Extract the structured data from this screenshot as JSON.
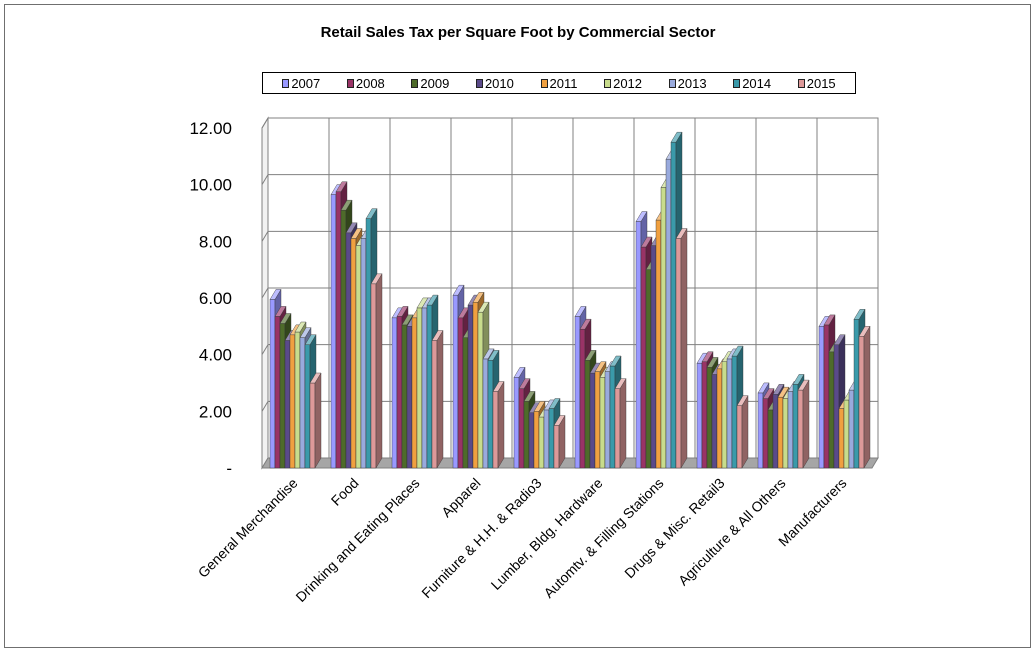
{
  "chart_data": {
    "type": "bar",
    "title": "Retail Sales Tax per Square Foot by Commercial Sector",
    "categories": [
      "General Merchandise",
      "Food",
      "Drinking and Eating Places",
      "Apparel",
      "Furniture & H.H. & Radio3",
      "Lumber, Bldg. Hardware",
      "Automtv. & Filling Stations",
      "Drugs & Misc. Retail3",
      "Agriculture & All Others",
      "Manufacturers"
    ],
    "ylim": [
      0,
      12
    ],
    "y_ticks": [
      "-",
      "2.00",
      "4.00",
      "6.00",
      "8.00",
      "10.00",
      "12.00"
    ],
    "grid": true,
    "legend_position": "top",
    "series": [
      {
        "name": "2007",
        "color": "#9999ff",
        "values": [
          5.95,
          9.65,
          5.3,
          6.1,
          3.2,
          5.35,
          8.7,
          3.7,
          2.65,
          5.0
        ]
      },
      {
        "name": "2008",
        "color": "#993366",
        "values": [
          5.35,
          9.75,
          5.35,
          5.3,
          2.8,
          4.9,
          7.8,
          3.75,
          2.45,
          5.05
        ]
      },
      {
        "name": "2009",
        "color": "#4e6b2a",
        "values": [
          5.1,
          9.1,
          5.05,
          4.6,
          2.35,
          3.8,
          7.0,
          3.55,
          2.05,
          4.1
        ]
      },
      {
        "name": "2010",
        "color": "#5a4a8a",
        "values": [
          4.5,
          8.3,
          5.0,
          5.75,
          1.95,
          3.35,
          7.85,
          3.3,
          2.6,
          4.35
        ]
      },
      {
        "name": "2011",
        "color": "#f0a040",
        "values": [
          4.7,
          8.1,
          5.3,
          5.85,
          2.0,
          3.4,
          8.75,
          3.5,
          2.5,
          2.1
        ]
      },
      {
        "name": "2012",
        "color": "#c8dc8c",
        "values": [
          4.8,
          7.85,
          5.65,
          5.5,
          1.8,
          3.2,
          9.9,
          3.75,
          2.45,
          2.4
        ]
      },
      {
        "name": "2013",
        "color": "#99aadd",
        "values": [
          4.6,
          8.1,
          5.65,
          3.85,
          2.05,
          3.4,
          10.9,
          3.85,
          2.7,
          2.75
        ]
      },
      {
        "name": "2014",
        "color": "#3a9aaa",
        "values": [
          4.35,
          8.8,
          5.75,
          3.8,
          2.1,
          3.6,
          11.5,
          3.95,
          2.95,
          5.25
        ]
      },
      {
        "name": "2015",
        "color": "#dd9999",
        "values": [
          3.0,
          6.5,
          4.5,
          2.7,
          1.5,
          2.8,
          8.1,
          2.2,
          2.75,
          4.65
        ]
      }
    ]
  }
}
